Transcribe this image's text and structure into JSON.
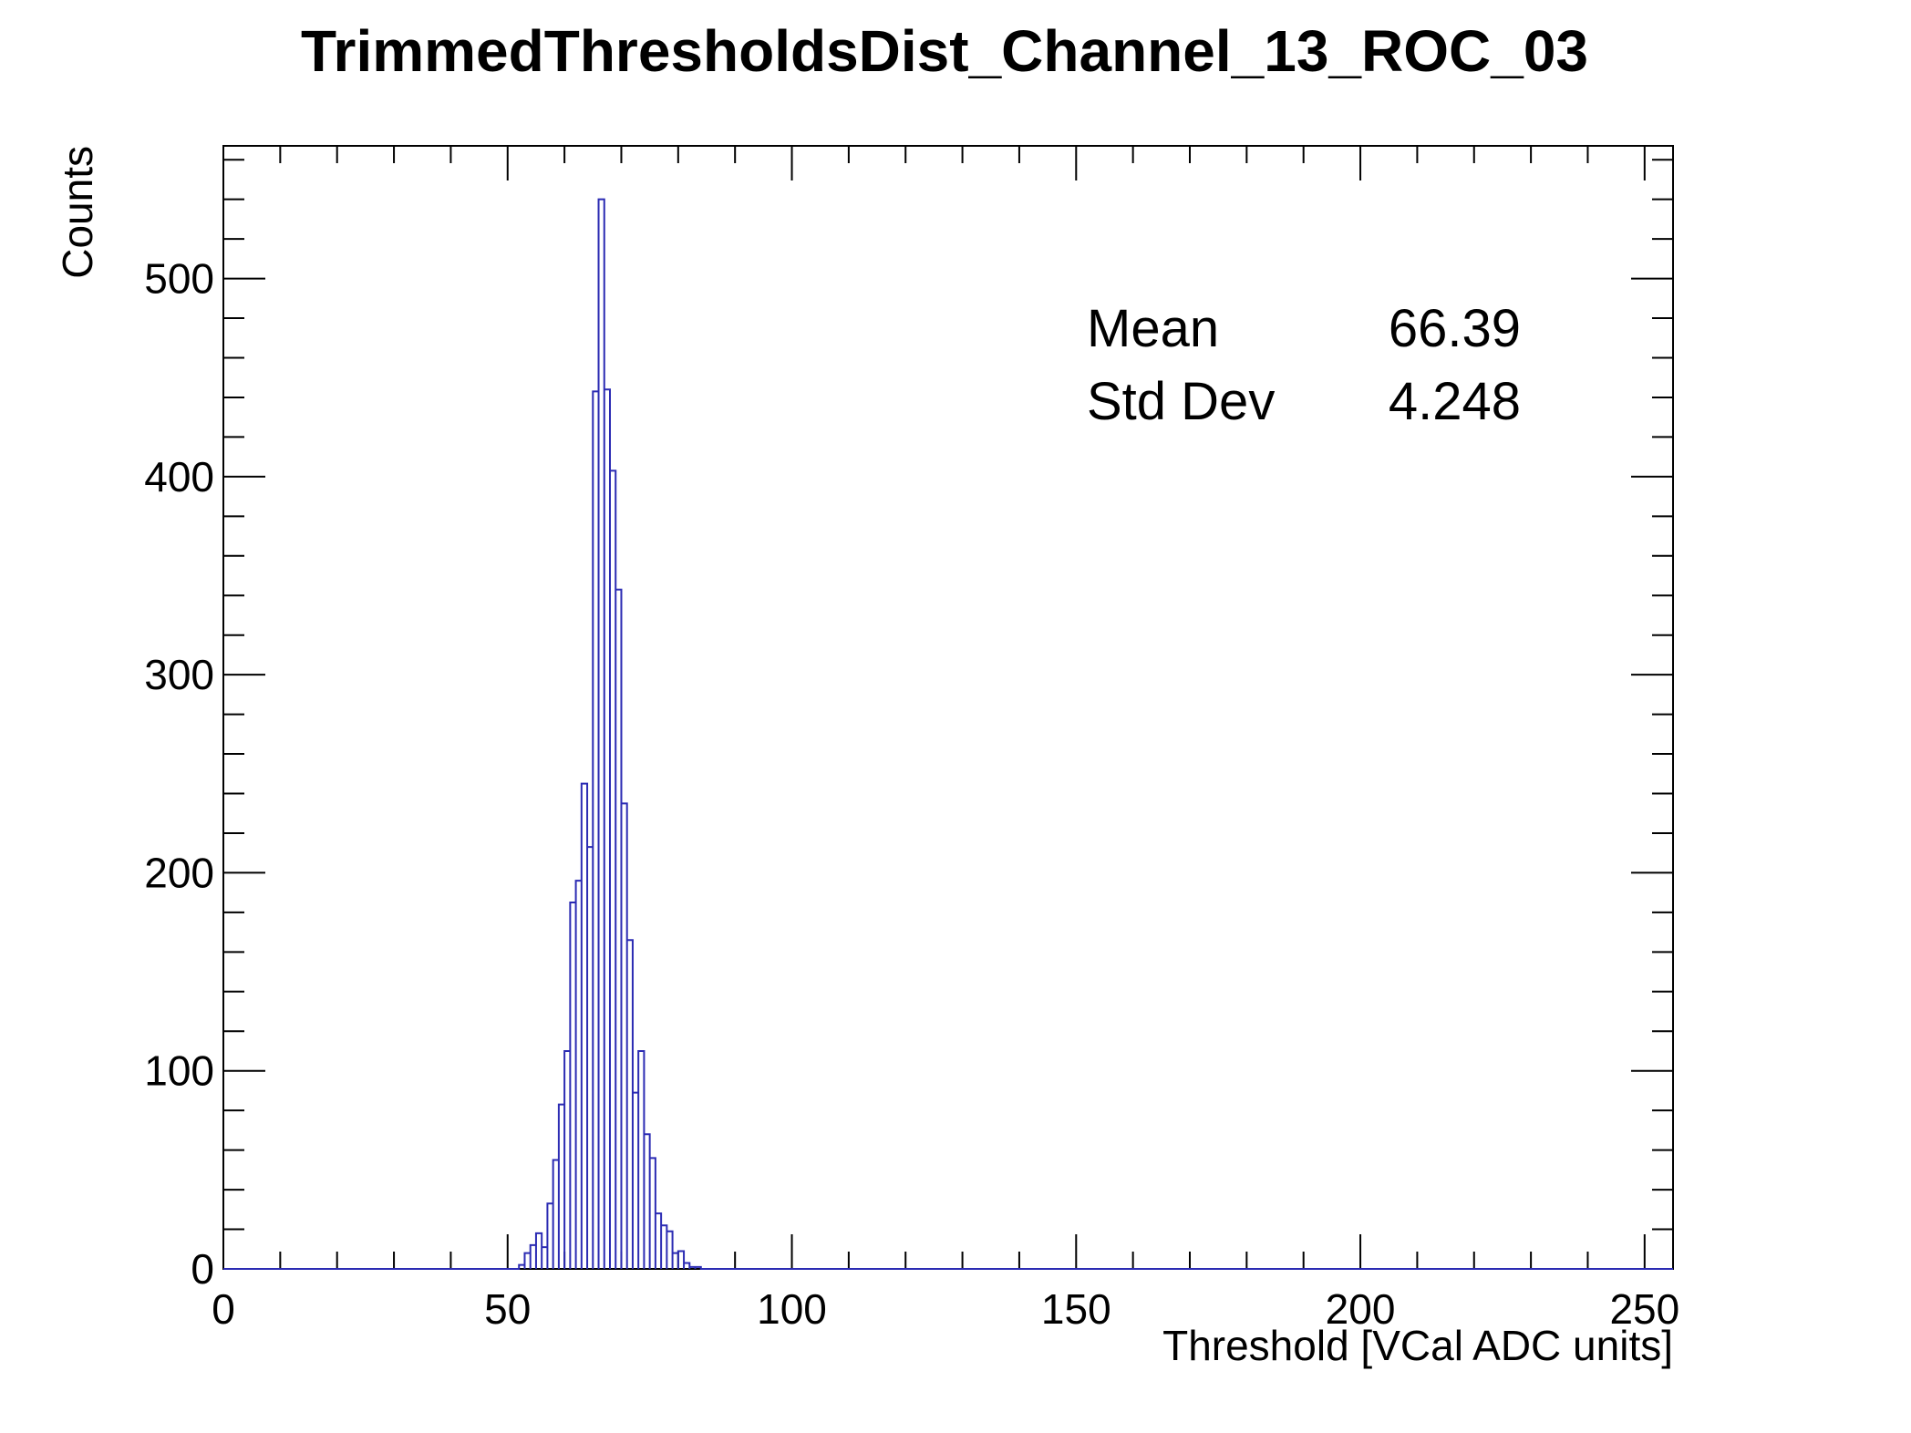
{
  "chart_data": {
    "type": "histogram",
    "title": "TrimmedThresholdsDist_Channel_13_ROC_03",
    "xlabel": "Threshold [VCal ADC units]",
    "ylabel": "Counts",
    "xlim": [
      0,
      255
    ],
    "ylim": [
      0,
      567
    ],
    "bin_width": 1,
    "x_ticks": [
      0,
      50,
      100,
      150,
      200,
      250
    ],
    "x_tick_labels": [
      "0",
      "50",
      "100",
      "150",
      "200",
      "250"
    ],
    "y_ticks": [
      0,
      100,
      200,
      300,
      400,
      500
    ],
    "y_tick_labels": [
      "0",
      "100",
      "200",
      "300",
      "400",
      "500"
    ],
    "grid": false,
    "legend": "none",
    "line_color": "#2b2bb3",
    "bins": [
      {
        "x": 52,
        "count": 2
      },
      {
        "x": 53,
        "count": 8
      },
      {
        "x": 54,
        "count": 12
      },
      {
        "x": 55,
        "count": 18
      },
      {
        "x": 56,
        "count": 11
      },
      {
        "x": 57,
        "count": 33
      },
      {
        "x": 58,
        "count": 55
      },
      {
        "x": 59,
        "count": 83
      },
      {
        "x": 60,
        "count": 110
      },
      {
        "x": 61,
        "count": 185
      },
      {
        "x": 62,
        "count": 196
      },
      {
        "x": 63,
        "count": 245
      },
      {
        "x": 64,
        "count": 213
      },
      {
        "x": 65,
        "count": 443
      },
      {
        "x": 66,
        "count": 540
      },
      {
        "x": 67,
        "count": 444
      },
      {
        "x": 68,
        "count": 403
      },
      {
        "x": 69,
        "count": 343
      },
      {
        "x": 70,
        "count": 235
      },
      {
        "x": 71,
        "count": 166
      },
      {
        "x": 72,
        "count": 89
      },
      {
        "x": 73,
        "count": 110
      },
      {
        "x": 74,
        "count": 68
      },
      {
        "x": 75,
        "count": 56
      },
      {
        "x": 76,
        "count": 28
      },
      {
        "x": 77,
        "count": 22
      },
      {
        "x": 78,
        "count": 19
      },
      {
        "x": 79,
        "count": 8
      },
      {
        "x": 80,
        "count": 9
      },
      {
        "x": 81,
        "count": 3
      },
      {
        "x": 82,
        "count": 1
      },
      {
        "x": 83,
        "count": 1
      }
    ],
    "stats": {
      "mean_label": "Mean",
      "mean_value": "66.39",
      "std_label": "Std Dev",
      "std_value": "4.248"
    }
  }
}
